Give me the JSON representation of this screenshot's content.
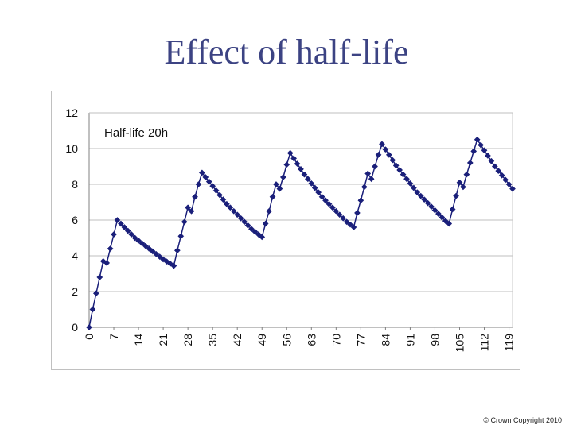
{
  "slide": {
    "title": "Effect of half-life",
    "copyright": "© Crown Copyright 2010"
  },
  "colors": {
    "title": "#3c4383",
    "series": "#1a1f7a",
    "gridline": "#bfbfbf"
  },
  "chart_data": {
    "type": "line",
    "title": "",
    "annotation": "Half-life 20h",
    "xlabel": "",
    "ylabel": "",
    "xlim": [
      0,
      120
    ],
    "ylim": [
      0,
      12
    ],
    "yticks": [
      0,
      2,
      4,
      6,
      8,
      10,
      12
    ],
    "xticks": [
      0,
      7,
      14,
      21,
      28,
      35,
      42,
      49,
      56,
      63,
      70,
      77,
      84,
      91,
      98,
      105,
      112,
      119
    ],
    "grid": true,
    "legend": "none",
    "marker": "diamond",
    "series": [
      {
        "x": [
          0,
          1,
          2,
          3,
          4,
          5,
          6,
          7,
          8,
          9,
          10,
          11,
          12,
          13,
          14,
          15,
          16,
          17,
          18,
          19,
          20,
          21,
          22,
          23,
          24,
          25,
          26,
          27,
          28,
          29,
          30,
          31,
          32,
          33,
          34,
          35,
          36,
          37,
          38,
          39,
          40,
          41,
          42,
          43,
          44,
          45,
          46,
          47,
          48,
          49,
          50,
          51,
          52,
          53,
          54,
          55,
          56,
          57,
          58,
          59,
          60,
          61,
          62,
          63,
          64,
          65,
          66,
          67,
          68,
          69,
          70,
          71,
          72,
          73,
          74,
          75,
          76,
          77,
          78,
          79,
          80,
          81,
          82,
          83,
          84,
          85,
          86,
          87,
          88,
          89,
          90,
          91,
          92,
          93,
          94,
          95,
          96,
          97,
          98,
          99,
          100,
          101,
          102,
          103,
          104,
          105,
          106,
          107,
          108,
          109,
          110,
          111,
          112,
          113,
          114,
          115,
          116,
          117,
          118,
          119,
          120
        ],
        "y": [
          0,
          1.0,
          1.9,
          2.8,
          3.7,
          3.6,
          4.4,
          5.2,
          6.0,
          5.8,
          5.6,
          5.4,
          5.2,
          5.0,
          4.85,
          4.7,
          4.55,
          4.4,
          4.25,
          4.1,
          3.95,
          3.8,
          3.68,
          3.56,
          3.44,
          4.3,
          5.1,
          5.9,
          6.7,
          6.5,
          7.3,
          8.0,
          8.65,
          8.4,
          8.15,
          7.9,
          7.65,
          7.4,
          7.15,
          6.9,
          6.7,
          6.5,
          6.3,
          6.1,
          5.9,
          5.7,
          5.5,
          5.35,
          5.2,
          5.05,
          5.8,
          6.5,
          7.3,
          8.0,
          7.75,
          8.4,
          9.1,
          9.75,
          9.45,
          9.15,
          8.85,
          8.55,
          8.3,
          8.05,
          7.8,
          7.55,
          7.3,
          7.1,
          6.9,
          6.7,
          6.5,
          6.3,
          6.1,
          5.9,
          5.75,
          5.6,
          6.4,
          7.1,
          7.85,
          8.6,
          8.3,
          9.0,
          9.65,
          10.25,
          9.95,
          9.65,
          9.35,
          9.05,
          8.8,
          8.55,
          8.3,
          8.05,
          7.8,
          7.55,
          7.35,
          7.15,
          6.95,
          6.75,
          6.55,
          6.35,
          6.15,
          5.95,
          5.8,
          6.6,
          7.35,
          8.1,
          7.85,
          8.55,
          9.2,
          9.85,
          10.5,
          10.2,
          9.9,
          9.6,
          9.3,
          9.0,
          8.75,
          8.5,
          8.25,
          8.0,
          7.75
        ]
      }
    ]
  }
}
